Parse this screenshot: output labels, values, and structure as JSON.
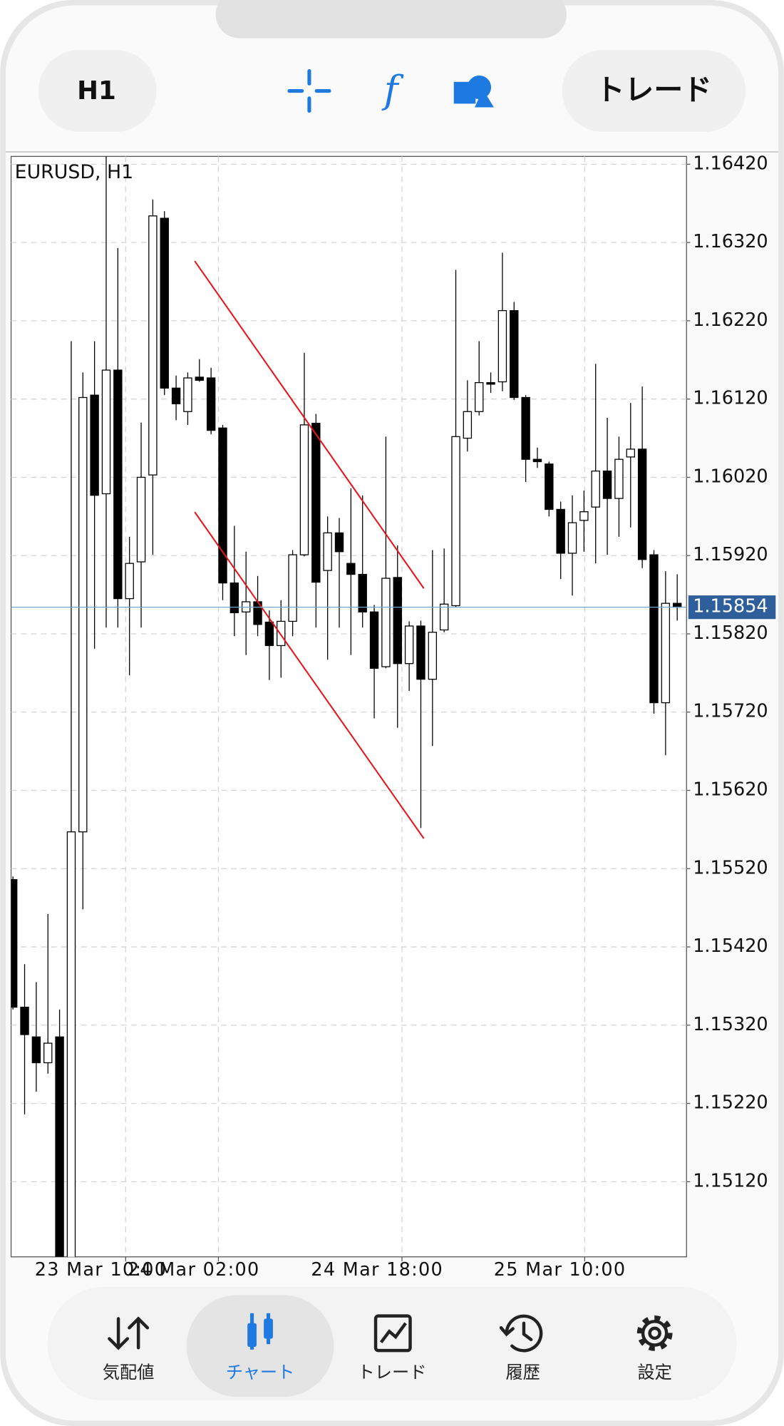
{
  "top_bar": {
    "timeframe": "H1",
    "trade_button": "トレード"
  },
  "bottom_nav": {
    "items": [
      "気配値",
      "チャート",
      "トレード",
      "履歴",
      "設定"
    ],
    "selected": 1
  },
  "chart_data": {
    "type": "candlestick",
    "title": "EURUSD, H1",
    "xlim": [
      -0.16,
      57.8
    ],
    "xticks": [
      {
        "value": 9.67,
        "label": "23 Mar 10:00"
      },
      {
        "value": 17.63,
        "label": "24 Mar 02:00"
      },
      {
        "value": 33.38,
        "label": "24 Mar 18:00"
      },
      {
        "value": 49.06,
        "label": "25 Mar 10:00"
      }
    ],
    "ylim": [
      1.15024,
      1.1643
    ],
    "yticks": [
      {
        "value": 1.1642,
        "label": "1.16420"
      },
      {
        "value": 1.1632,
        "label": "1.16320"
      },
      {
        "value": 1.1622,
        "label": "1.16220"
      },
      {
        "value": 1.1612,
        "label": "1.16120"
      },
      {
        "value": 1.1602,
        "label": "1.16020"
      },
      {
        "value": 1.1592,
        "label": "1.15920"
      },
      {
        "value": 1.1582,
        "label": "1.15820"
      },
      {
        "value": 1.1572,
        "label": "1.15720"
      },
      {
        "value": 1.1562,
        "label": "1.15620"
      },
      {
        "value": 1.1552,
        "label": "1.15520"
      },
      {
        "value": 1.1542,
        "label": "1.15420"
      },
      {
        "value": 1.1532,
        "label": "1.15320"
      },
      {
        "value": 1.1522,
        "label": "1.15220"
      },
      {
        "value": 1.1512,
        "label": "1.15120"
      }
    ],
    "grid": true,
    "last_price": 1.15854,
    "open": [
      1.15506,
      1.15343,
      1.15305,
      1.15272,
      1.15305,
      1.14979,
      1.15567,
      1.16125,
      1.15999,
      1.16157,
      1.15865,
      1.15912,
      1.16023,
      1.16351,
      1.16134,
      1.16104,
      1.16148,
      1.16147,
      1.16083,
      1.15885,
      1.15848,
      1.15861,
      1.15835,
      1.15805,
      1.15836,
      1.15921,
      1.16089,
      1.15901,
      1.15949,
      1.1591,
      1.15896,
      1.15848,
      1.15778,
      1.15892,
      1.15782,
      1.1583,
      1.15762,
      1.15825,
      1.15856,
      1.1607,
      1.16104,
      1.16141,
      1.16142,
      1.16233,
      1.16122,
      1.16043,
      1.16037,
      1.15979,
      1.15923,
      1.15965,
      1.15982,
      1.16028,
      1.15993,
      1.16046,
      1.16056,
      1.15921,
      1.15732,
      1.15859
    ],
    "high": [
      1.1551,
      1.15398,
      1.15375,
      1.15462,
      1.1534,
      1.16194,
      1.16154,
      1.16194,
      1.1644,
      1.16313,
      1.15944,
      1.1609,
      1.16375,
      1.1636,
      1.1615,
      1.16154,
      1.16171,
      1.1616,
      1.16087,
      1.15958,
      1.15925,
      1.15894,
      1.1585,
      1.15863,
      1.15927,
      1.16179,
      1.16101,
      1.1597,
      1.15968,
      1.16006,
      1.15997,
      1.15857,
      1.16072,
      1.15933,
      1.15836,
      1.15837,
      1.15927,
      1.15929,
      1.16285,
      1.16144,
      1.16194,
      1.16154,
      1.16307,
      1.16244,
      1.16125,
      1.16058,
      1.1604,
      1.15989,
      1.15997,
      1.16003,
      1.16165,
      1.16096,
      1.16072,
      1.16115,
      1.16136,
      1.15927,
      1.159,
      1.15896
    ],
    "low": [
      1.1534,
      1.15206,
      1.15235,
      1.15258,
      1.1499,
      1.1497,
      1.15468,
      1.15801,
      1.15828,
      1.15828,
      1.15767,
      1.15828,
      1.15921,
      1.16125,
      1.16093,
      1.16087,
      1.16142,
      1.16075,
      1.15863,
      1.15817,
      1.15793,
      1.15817,
      1.15761,
      1.15764,
      1.15817,
      1.15919,
      1.15828,
      1.15787,
      1.15828,
      1.15793,
      1.15828,
      1.15712,
      1.15776,
      1.157,
      1.15747,
      1.15572,
      1.15677,
      1.15822,
      1.15854,
      1.16053,
      1.16099,
      1.16128,
      1.1613,
      1.16119,
      1.16014,
      1.16032,
      1.1597,
      1.1589,
      1.15869,
      1.15925,
      1.1591,
      1.15921,
      1.15944,
      1.15956,
      1.15904,
      1.15718,
      1.15665,
      1.15837
    ],
    "close": [
      1.15343,
      1.15308,
      1.15272,
      1.15297,
      1.15003,
      1.15567,
      1.16122,
      1.15997,
      1.16157,
      1.15865,
      1.1591,
      1.1602,
      1.16354,
      1.16134,
      1.16114,
      1.16147,
      1.16144,
      1.1608,
      1.15885,
      1.15847,
      1.15861,
      1.15832,
      1.15805,
      1.15836,
      1.15921,
      1.16087,
      1.15886,
      1.15949,
      1.15925,
      1.15896,
      1.15848,
      1.15776,
      1.15891,
      1.15782,
      1.1583,
      1.15762,
      1.15822,
      1.15858,
      1.16072,
      1.16104,
      1.16141,
      1.16139,
      1.16233,
      1.16122,
      1.16043,
      1.1604,
      1.15979,
      1.15923,
      1.15962,
      1.15976,
      1.16028,
      1.15993,
      1.16043,
      1.16056,
      1.15915,
      1.15732,
      1.15859,
      1.15854
    ]
  }
}
